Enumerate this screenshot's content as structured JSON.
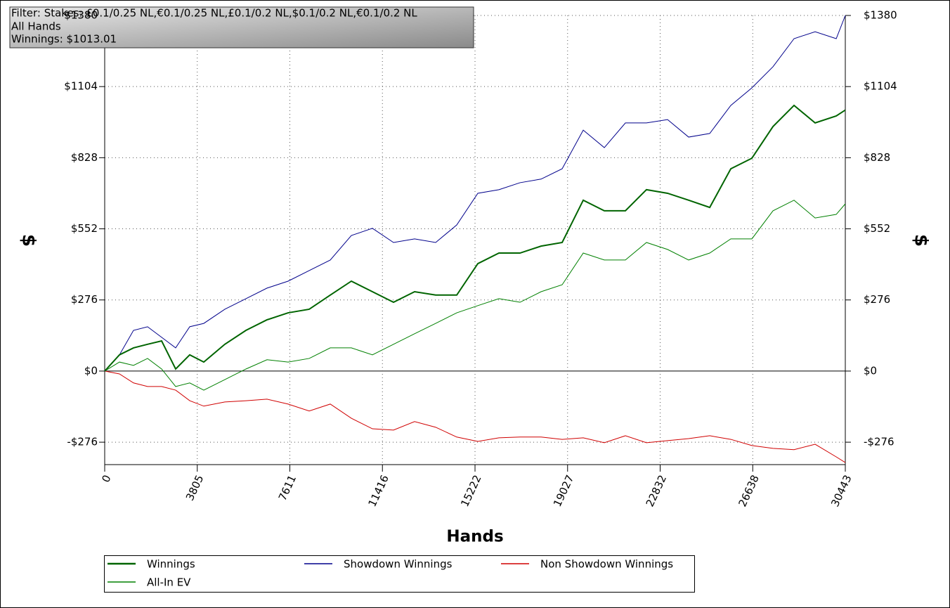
{
  "chart_data": {
    "type": "line",
    "info": [
      "Filter: Stakes: £0.1/0.25 NL,€0.1/0.25 NL,£0.1/0.2 NL,$0.1/0.2 NL,€0.1/0.2 NL",
      "All Hands",
      "Winnings: $1013.01"
    ],
    "xlabel": "Hands",
    "ylabel": "$",
    "y2label": "$",
    "x": [
      0,
      607,
      1184,
      1762,
      2340,
      2917,
      3495,
      4073,
      4939,
      5806,
      6672,
      7539,
      8406,
      9272,
      10139,
      11005,
      11872,
      12738,
      13605,
      14471,
      15338,
      16205,
      17071,
      17938,
      18804,
      19671,
      20537,
      21404,
      22270,
      23137,
      24003,
      24870,
      25737,
      26603,
      27470,
      28336,
      29203,
      30070,
      30443
    ],
    "series": [
      {
        "name": "Winnings",
        "color": "#006400",
        "width": 2,
        "values": [
          0,
          63,
          90,
          104,
          117,
          8,
          63,
          35,
          104,
          158,
          199,
          226,
          240,
          295,
          349,
          308,
          267,
          308,
          295,
          295,
          417,
          458,
          458,
          485,
          499,
          663,
          622,
          622,
          704,
          690,
          663,
          635,
          785,
          826,
          949,
          1031,
          963,
          990,
          1013
        ]
      },
      {
        "name": "Showdown Winnings",
        "color": "#00008b",
        "width": 1,
        "values": [
          0,
          63,
          158,
          172,
          131,
          90,
          172,
          185,
          240,
          281,
          322,
          349,
          390,
          431,
          526,
          554,
          499,
          513,
          499,
          567,
          690,
          704,
          731,
          745,
          785,
          935,
          867,
          963,
          963,
          976,
          908,
          922,
          1031,
          1099,
          1181,
          1290,
          1317,
          1290,
          1380
        ]
      },
      {
        "name": "Non Showdown Winnings",
        "color": "#d00000",
        "width": 1,
        "values": [
          0,
          -11,
          -46,
          -60,
          -60,
          -74,
          -115,
          -136,
          -120,
          -115,
          -109,
          -128,
          -155,
          -128,
          -183,
          -224,
          -229,
          -196,
          -218,
          -256,
          -273,
          -259,
          -256,
          -256,
          -265,
          -259,
          -278,
          -251,
          -278,
          -270,
          -262,
          -251,
          -265,
          -289,
          -300,
          -305,
          -284,
          -333,
          -355
        ]
      },
      {
        "name": "All-In EV",
        "color": "#008000",
        "width": 1,
        "values": [
          0,
          35,
          22,
          49,
          8,
          -60,
          -46,
          -74,
          -33,
          8,
          44,
          35,
          49,
          90,
          90,
          63,
          104,
          145,
          185,
          226,
          254,
          281,
          267,
          308,
          335,
          458,
          431,
          431,
          499,
          472,
          431,
          458,
          513,
          513,
          622,
          663,
          594,
          608,
          649
        ]
      }
    ],
    "xlim": [
      0,
      30443
    ],
    "xticks": [
      0,
      3805,
      7611,
      11416,
      15222,
      19027,
      22832,
      26638,
      30443
    ],
    "ylim": [
      -363,
      1380
    ],
    "yticks": [
      {
        "value": -276,
        "label": "-$276"
      },
      {
        "value": 0,
        "label": "$0"
      },
      {
        "value": 276,
        "label": "$276"
      },
      {
        "value": 552,
        "label": "$552"
      },
      {
        "value": 828,
        "label": "$828"
      },
      {
        "value": 1104,
        "label": "$1104"
      },
      {
        "value": 1380,
        "label": "$1380"
      }
    ],
    "grid": true,
    "legend": "bottom"
  }
}
